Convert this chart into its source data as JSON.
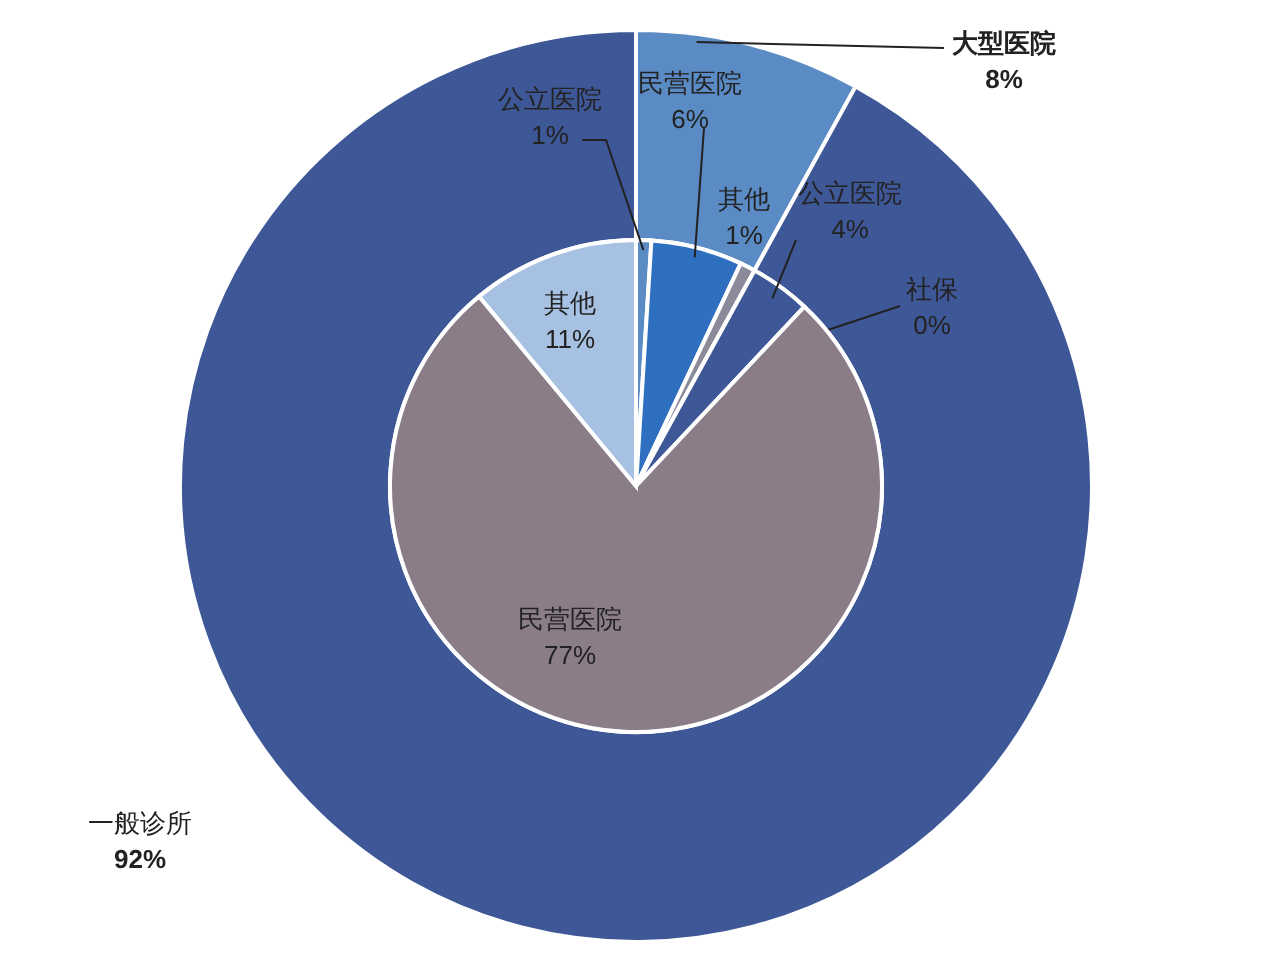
{
  "chart_data": [
    {
      "type": "donut",
      "categories": [
        "大型医院",
        "一般诊所"
      ],
      "values": [
        8,
        92
      ],
      "colors": [
        "#5a8bc4",
        "#3d5797"
      ],
      "value_labels": [
        "8%",
        "92%"
      ]
    },
    {
      "type": "pie",
      "categories": [
        "公立医院",
        "民营医院",
        "其他",
        "公立医院",
        "社保",
        "民营医院",
        "其他"
      ],
      "values": [
        1,
        6,
        1,
        4,
        0,
        77,
        11
      ],
      "colors": [
        "#5a8bc4",
        "#2e6fc0",
        "#8a8a9a",
        "#3d5797",
        null,
        "#8a7d88",
        "#a6c1e2"
      ],
      "value_labels": [
        "1%",
        "6%",
        "1%",
        "4%",
        "0%",
        "77%",
        "11%"
      ]
    }
  ]
}
